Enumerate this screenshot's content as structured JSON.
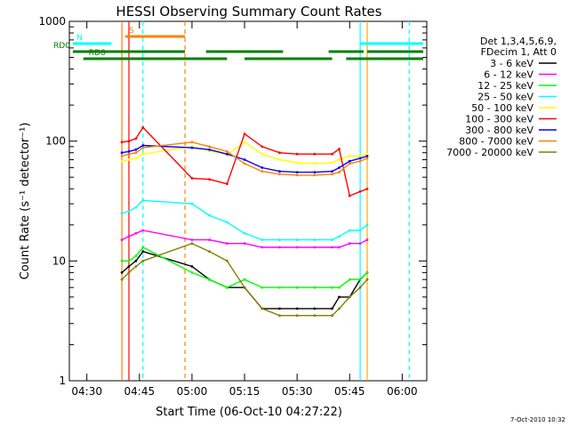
{
  "chart_data": {
    "type": "line",
    "title": "HESSI Observing Summary Count Rates",
    "xlabel": "Start Time (06-Oct-10 04:27:22)",
    "ylabel": "Count Rate (s⁻¹ detector⁻¹)",
    "yscale": "log",
    "ylim": [
      1,
      1000
    ],
    "xlim": [
      "04:25",
      "06:07"
    ],
    "x_ticks": [
      "04:30",
      "04:45",
      "05:00",
      "05:15",
      "05:30",
      "05:45",
      "06:00"
    ],
    "y_ticks": [
      "1",
      "10",
      "100",
      "1000"
    ],
    "legend_title": [
      "Det 1,3,4,5,6,9,",
      "FDecim 1, Att 0"
    ],
    "legend_position": "right",
    "timestamp": "7-Oct-2010 10:32",
    "x": [
      "04:40",
      "04:42",
      "04:44",
      "04:46",
      "05:00",
      "05:05",
      "05:10",
      "05:15",
      "05:20",
      "05:25",
      "05:30",
      "05:35",
      "05:40",
      "05:42",
      "05:45",
      "05:48",
      "05:50"
    ],
    "series": [
      {
        "name": "3 - 6 keV",
        "color": "#000000",
        "values": [
          8,
          9,
          10,
          12,
          9,
          7,
          6,
          6,
          4,
          4,
          4,
          4,
          4,
          5,
          5,
          7,
          8
        ]
      },
      {
        "name": "6 - 12 keV",
        "color": "#ff00ff",
        "values": [
          15,
          16,
          17,
          18,
          15,
          15,
          14,
          14,
          13,
          13,
          13,
          13,
          13,
          13,
          14,
          14,
          15
        ]
      },
      {
        "name": "12 - 25 keV",
        "color": "#00ff00",
        "values": [
          10,
          10,
          11,
          13,
          8,
          7,
          6,
          7,
          6,
          6,
          6,
          6,
          6,
          6,
          7,
          7,
          8
        ]
      },
      {
        "name": "25 - 50 keV",
        "color": "#00ffff",
        "values": [
          25,
          26,
          28,
          32,
          30,
          24,
          21,
          17,
          15,
          15,
          15,
          15,
          15,
          16,
          18,
          18,
          20
        ]
      },
      {
        "name": "50 - 100 keV",
        "color": "#ffff00",
        "values": [
          68,
          70,
          72,
          78,
          90,
          83,
          77,
          98,
          78,
          70,
          66,
          65,
          66,
          70,
          75,
          75,
          78
        ]
      },
      {
        "name": "100 - 300 keV",
        "color": "#ff0000",
        "values": [
          98,
          100,
          105,
          130,
          49,
          48,
          44,
          115,
          90,
          80,
          78,
          78,
          78,
          86,
          35,
          38,
          40
        ]
      },
      {
        "name": "300 - 800 keV",
        "color": "#0000ff",
        "values": [
          80,
          82,
          85,
          92,
          88,
          85,
          78,
          70,
          60,
          56,
          55,
          55,
          56,
          60,
          68,
          72,
          75
        ]
      },
      {
        "name": "800 - 7000 keV",
        "color": "#ff8000",
        "values": [
          75,
          78,
          80,
          88,
          98,
          90,
          82,
          65,
          56,
          53,
          52,
          52,
          53,
          55,
          65,
          68,
          72
        ]
      },
      {
        "name": "7000 - 20000 keV",
        "color": "#808000",
        "values": [
          7,
          8,
          9,
          10,
          14,
          12,
          10,
          6,
          4,
          3.5,
          3.5,
          3.5,
          3.5,
          4,
          5,
          6,
          7
        ]
      }
    ],
    "markers": [
      {
        "time": "04:40",
        "color": "#ff8000",
        "style": "solid"
      },
      {
        "time": "04:42",
        "color": "#ff0000",
        "style": "solid"
      },
      {
        "time": "04:46",
        "color": "#00ffff",
        "style": "dashed"
      },
      {
        "time": "04:58",
        "color": "#ff8000",
        "style": "dashed"
      },
      {
        "time": "05:48",
        "color": "#00ffff",
        "style": "solid"
      },
      {
        "time": "05:50",
        "color": "#ffaa00",
        "style": "solid"
      },
      {
        "time": "06:02",
        "color": "#00ffff",
        "style": "dashed"
      }
    ],
    "status_bars": [
      {
        "label": "S",
        "color": "#ff8000",
        "segments": [
          [
            "04:41",
            "04:58"
          ]
        ]
      },
      {
        "label": "N",
        "color": "#00ffff",
        "segments": [
          [
            "04:26",
            "04:37"
          ],
          [
            "05:48",
            "06:06"
          ]
        ]
      },
      {
        "label": "RD0",
        "color": "#008000",
        "segments": [
          [
            "04:26",
            "04:58"
          ],
          [
            "05:04",
            "05:26"
          ],
          [
            "05:39",
            "05:49"
          ],
          [
            "05:50",
            "06:06"
          ]
        ]
      },
      {
        "label": "RD6",
        "color": "#008000",
        "segments": [
          [
            "04:29",
            "05:00"
          ],
          [
            "05:00",
            "05:10"
          ],
          [
            "05:15",
            "05:40"
          ],
          [
            "05:44",
            "06:06"
          ]
        ]
      }
    ]
  }
}
